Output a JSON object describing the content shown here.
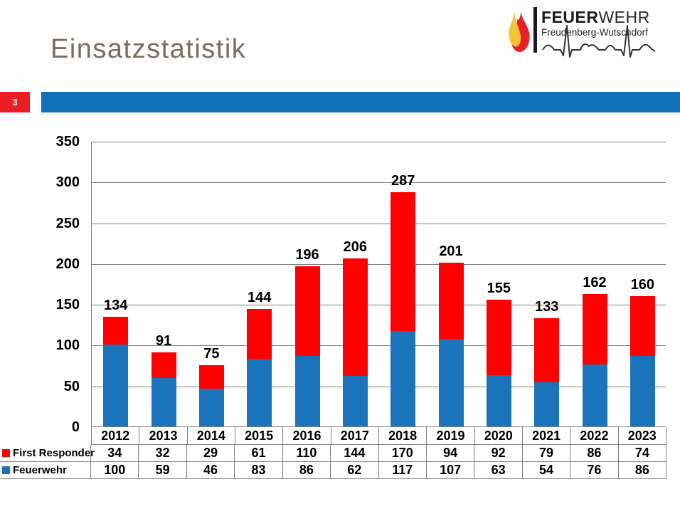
{
  "slide": {
    "title": "Einsatzstatistik",
    "page_number": "3",
    "accent_blue": "#1272b9",
    "accent_red": "#ec1c24",
    "title_color": "#7a6d60"
  },
  "logo": {
    "brand_bold": "FEUER",
    "brand_light": "WEHR",
    "subtitle": "Freudenberg-Wutschdorf",
    "flame_yellow": "#f2c438",
    "flame_red": "#e62128"
  },
  "chart_data": {
    "type": "bar",
    "stacked": true,
    "title": "",
    "xlabel": "",
    "ylabel": "",
    "ylim": [
      0,
      350
    ],
    "yticks": [
      0,
      50,
      100,
      150,
      200,
      250,
      300,
      350
    ],
    "grid": true,
    "legend_position": "table-left",
    "data_labels": "total-above-bar",
    "categories": [
      "2012",
      "2013",
      "2014",
      "2015",
      "2016",
      "2017",
      "2018",
      "2019",
      "2020",
      "2021",
      "2022",
      "2023"
    ],
    "series": [
      {
        "name": "First Responder",
        "color": "#fe0000",
        "values": [
          34,
          32,
          29,
          61,
          110,
          144,
          170,
          94,
          92,
          79,
          86,
          74
        ]
      },
      {
        "name": "Feuerwehr",
        "color": "#1b74bb",
        "values": [
          100,
          59,
          46,
          83,
          86,
          62,
          117,
          107,
          63,
          54,
          76,
          86
        ]
      }
    ],
    "totals": [
      134,
      91,
      75,
      144,
      196,
      206,
      287,
      201,
      155,
      133,
      162,
      160
    ]
  }
}
